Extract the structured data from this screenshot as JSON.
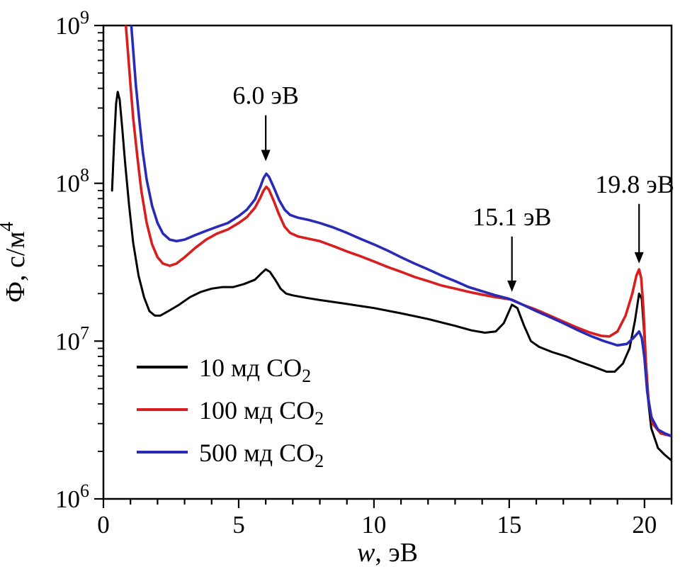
{
  "chart_data": {
    "type": "line",
    "title": "",
    "xlabel": {
      "italic": "w",
      "rest": ", эВ"
    },
    "ylabel": {
      "main": "Ф, с/м",
      "sup": "4"
    },
    "xlim": [
      0,
      21
    ],
    "ylog10_lim": [
      6,
      9
    ],
    "x_major_ticks": [
      0,
      5,
      10,
      15,
      20
    ],
    "x_minor_step": 1,
    "y_decades": [
      6,
      7,
      8,
      9
    ],
    "grid": false,
    "legend_position": "lower-left-inside",
    "legend": [
      {
        "id": "10md",
        "text": "10 мд CO",
        "sub": "2",
        "color": "#000000"
      },
      {
        "id": "100md",
        "text": "100 мд CO",
        "sub": "2",
        "color": "#d81e1e"
      },
      {
        "id": "500md",
        "text": "500 мд CO",
        "sub": "2",
        "color": "#2a2ab8"
      }
    ],
    "annotations": [
      {
        "text": "6.0 эВ",
        "x": 6.0,
        "arrow_from_value": 270000000.0,
        "arrow_to_value": 138000000.0
      },
      {
        "text": "15.1 эВ",
        "x": 15.1,
        "arrow_from_value": 46000000.0,
        "arrow_to_value": 20500000.0
      },
      {
        "text": "19.8 эВ",
        "x": 19.8,
        "arrow_from_value": 74000000.0,
        "arrow_to_value": 31000000.0
      }
    ],
    "series": [
      {
        "id": "10md",
        "name": "10 мд CO2",
        "color": "#000000",
        "width": 3,
        "points": [
          [
            0.32,
            90000000.0
          ],
          [
            0.4,
            190000000.0
          ],
          [
            0.47,
            320000000.0
          ],
          [
            0.53,
            380000000.0
          ],
          [
            0.6,
            340000000.0
          ],
          [
            0.7,
            220000000.0
          ],
          [
            0.8,
            135000000.0
          ],
          [
            0.95,
            72000000.0
          ],
          [
            1.1,
            42000000.0
          ],
          [
            1.3,
            26000000.0
          ],
          [
            1.5,
            19000000.0
          ],
          [
            1.7,
            15500000.0
          ],
          [
            1.9,
            14500000.0
          ],
          [
            2.1,
            14500000.0
          ],
          [
            2.4,
            15500000.0
          ],
          [
            2.8,
            17000000.0
          ],
          [
            3.2,
            19000000.0
          ],
          [
            3.6,
            20500000.0
          ],
          [
            4.0,
            21500000.0
          ],
          [
            4.4,
            22000000.0
          ],
          [
            4.8,
            22000000.0
          ],
          [
            5.2,
            23000000.0
          ],
          [
            5.6,
            24500000.0
          ],
          [
            5.85,
            27000000.0
          ],
          [
            6.0,
            28500000.0
          ],
          [
            6.15,
            27500000.0
          ],
          [
            6.35,
            24500000.0
          ],
          [
            6.55,
            21500000.0
          ],
          [
            6.75,
            20000000.0
          ],
          [
            7.0,
            19500000.0
          ],
          [
            7.5,
            18800000.0
          ],
          [
            8.0,
            18200000.0
          ],
          [
            9.0,
            17200000.0
          ],
          [
            10.0,
            16200000.0
          ],
          [
            11.0,
            15000000.0
          ],
          [
            12.0,
            13800000.0
          ],
          [
            13.0,
            12500000.0
          ],
          [
            13.6,
            11700000.0
          ],
          [
            14.1,
            11300000.0
          ],
          [
            14.5,
            11500000.0
          ],
          [
            14.8,
            13000000.0
          ],
          [
            15.1,
            17000000.0
          ],
          [
            15.3,
            16200000.0
          ],
          [
            15.55,
            12500000.0
          ],
          [
            15.8,
            10000000.0
          ],
          [
            16.1,
            9200000.0
          ],
          [
            16.6,
            8500000.0
          ],
          [
            17.1,
            8000000.0
          ],
          [
            17.6,
            7400000.0
          ],
          [
            18.1,
            6900000.0
          ],
          [
            18.6,
            6400000.0
          ],
          [
            18.9,
            6400000.0
          ],
          [
            19.2,
            7200000.0
          ],
          [
            19.45,
            9000000.0
          ],
          [
            19.65,
            13500000.0
          ],
          [
            19.8,
            20000000.0
          ],
          [
            19.9,
            18500000.0
          ],
          [
            20.0,
            10500000.0
          ],
          [
            20.1,
            4800000.0
          ],
          [
            20.25,
            2800000.0
          ],
          [
            20.5,
            2100000.0
          ],
          [
            20.75,
            1900000.0
          ],
          [
            21.0,
            1750000.0
          ]
        ]
      },
      {
        "id": "100md",
        "name": "100 мд CO2",
        "color": "#d81e1e",
        "width": 3.6,
        "points": [
          [
            0.82,
            1050000000.0
          ],
          [
            0.9,
            700000000.0
          ],
          [
            1.0,
            420000000.0
          ],
          [
            1.1,
            260000000.0
          ],
          [
            1.25,
            150000000.0
          ],
          [
            1.4,
            90000000.0
          ],
          [
            1.6,
            56000000.0
          ],
          [
            1.8,
            41000000.0
          ],
          [
            2.0,
            34000000.0
          ],
          [
            2.2,
            31000000.0
          ],
          [
            2.45,
            30000000.0
          ],
          [
            2.7,
            31000000.0
          ],
          [
            3.0,
            34000000.0
          ],
          [
            3.4,
            39000000.0
          ],
          [
            3.8,
            44000000.0
          ],
          [
            4.2,
            48000000.0
          ],
          [
            4.6,
            51000000.0
          ],
          [
            5.0,
            56000000.0
          ],
          [
            5.3,
            61000000.0
          ],
          [
            5.6,
            70000000.0
          ],
          [
            5.8,
            81000000.0
          ],
          [
            5.92,
            90000000.0
          ],
          [
            6.02,
            95000000.0
          ],
          [
            6.12,
            91000000.0
          ],
          [
            6.3,
            77000000.0
          ],
          [
            6.5,
            63000000.0
          ],
          [
            6.7,
            53000000.0
          ],
          [
            6.9,
            48500000.0
          ],
          [
            7.2,
            46000000.0
          ],
          [
            7.6,
            44500000.0
          ],
          [
            8.0,
            43000000.0
          ],
          [
            8.5,
            40000000.0
          ],
          [
            9.0,
            37000000.0
          ],
          [
            9.5,
            34500000.0
          ],
          [
            10.0,
            32000000.0
          ],
          [
            10.5,
            29500000.0
          ],
          [
            11.0,
            27500000.0
          ],
          [
            11.5,
            25500000.0
          ],
          [
            12.0,
            24000000.0
          ],
          [
            12.5,
            22500000.0
          ],
          [
            13.0,
            21500000.0
          ],
          [
            13.5,
            20500000.0
          ],
          [
            14.0,
            19700000.0
          ],
          [
            14.5,
            19000000.0
          ],
          [
            15.1,
            18300000.0
          ],
          [
            15.5,
            17000000.0
          ],
          [
            16.0,
            15800000.0
          ],
          [
            16.5,
            14500000.0
          ],
          [
            17.0,
            13300000.0
          ],
          [
            17.5,
            12200000.0
          ],
          [
            18.0,
            11300000.0
          ],
          [
            18.4,
            10800000.0
          ],
          [
            18.7,
            10700000.0
          ],
          [
            19.0,
            11500000.0
          ],
          [
            19.3,
            14500000.0
          ],
          [
            19.55,
            20000000.0
          ],
          [
            19.7,
            26000000.0
          ],
          [
            19.8,
            28500000.0
          ],
          [
            19.88,
            25000000.0
          ],
          [
            19.96,
            16000000.0
          ],
          [
            20.05,
            7500000.0
          ],
          [
            20.15,
            4200000.0
          ],
          [
            20.3,
            3000000.0
          ],
          [
            20.6,
            2600000.0
          ],
          [
            21.0,
            2500000.0
          ]
        ]
      },
      {
        "id": "500md",
        "name": "500 мд CO2",
        "color": "#2a2ab8",
        "width": 3.6,
        "points": [
          [
            1.02,
            1050000000.0
          ],
          [
            1.1,
            700000000.0
          ],
          [
            1.2,
            420000000.0
          ],
          [
            1.32,
            260000000.0
          ],
          [
            1.45,
            160000000.0
          ],
          [
            1.6,
            105000000.0
          ],
          [
            1.8,
            72000000.0
          ],
          [
            2.0,
            56000000.0
          ],
          [
            2.2,
            48000000.0
          ],
          [
            2.45,
            44000000.0
          ],
          [
            2.7,
            43000000.0
          ],
          [
            3.0,
            44000000.0
          ],
          [
            3.4,
            47000000.0
          ],
          [
            3.8,
            50000000.0
          ],
          [
            4.2,
            53000000.0
          ],
          [
            4.6,
            56000000.0
          ],
          [
            5.0,
            62000000.0
          ],
          [
            5.3,
            68000000.0
          ],
          [
            5.6,
            79000000.0
          ],
          [
            5.8,
            95000000.0
          ],
          [
            5.92,
            108000000.0
          ],
          [
            6.02,
            115000000.0
          ],
          [
            6.12,
            110000000.0
          ],
          [
            6.3,
            94000000.0
          ],
          [
            6.5,
            78000000.0
          ],
          [
            6.7,
            68000000.0
          ],
          [
            6.9,
            63000000.0
          ],
          [
            7.2,
            60500000.0
          ],
          [
            7.6,
            58500000.0
          ],
          [
            8.0,
            56000000.0
          ],
          [
            8.5,
            52500000.0
          ],
          [
            9.0,
            48500000.0
          ],
          [
            9.5,
            44500000.0
          ],
          [
            10.0,
            41000000.0
          ],
          [
            10.5,
            37500000.0
          ],
          [
            11.0,
            34000000.0
          ],
          [
            11.5,
            31000000.0
          ],
          [
            12.0,
            28500000.0
          ],
          [
            12.5,
            26000000.0
          ],
          [
            13.0,
            24000000.0
          ],
          [
            13.5,
            22000000.0
          ],
          [
            14.0,
            20700000.0
          ],
          [
            14.5,
            19500000.0
          ],
          [
            15.0,
            18500000.0
          ],
          [
            15.5,
            17000000.0
          ],
          [
            16.0,
            15500000.0
          ],
          [
            16.5,
            14200000.0
          ],
          [
            17.0,
            13000000.0
          ],
          [
            17.5,
            11800000.0
          ],
          [
            18.0,
            10800000.0
          ],
          [
            18.5,
            10000000.0
          ],
          [
            19.0,
            9400000.0
          ],
          [
            19.35,
            9600000.0
          ],
          [
            19.6,
            10500000.0
          ],
          [
            19.8,
            11500000.0
          ],
          [
            19.9,
            10500000.0
          ],
          [
            20.0,
            7800000.0
          ],
          [
            20.1,
            4800000.0
          ],
          [
            20.25,
            3300000.0
          ],
          [
            20.5,
            2750000.0
          ],
          [
            20.75,
            2600000.0
          ],
          [
            21.0,
            2500000.0
          ]
        ]
      }
    ]
  }
}
